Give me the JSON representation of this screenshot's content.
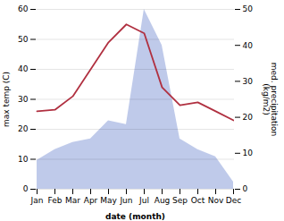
{
  "chart_data": {
    "type": "line",
    "categories": [
      "Jan",
      "Feb",
      "Mar",
      "Apr",
      "May",
      "Jun",
      "Jul",
      "Aug",
      "Sep",
      "Oct",
      "Nov",
      "Dec"
    ],
    "xlabel": "date (month)",
    "ylabel": "max temp (C)",
    "y2label": "med. precipitation\n(kg/m2)",
    "series": [
      {
        "type": "area",
        "axis": "y2",
        "color": "#b8c4e8",
        "values": [
          8,
          11,
          13,
          14,
          19,
          18,
          50,
          40,
          14,
          11,
          9,
          2
        ]
      },
      {
        "type": "line",
        "color": "#b03040",
        "values": [
          26,
          26.5,
          31,
          40,
          49,
          55,
          52,
          34,
          28,
          29,
          26,
          23
        ]
      }
    ],
    "ylim": [
      0,
      60
    ],
    "yticks": [
      0,
      10,
      20,
      30,
      40,
      50,
      60
    ],
    "y2lim": [
      0,
      50
    ],
    "y2ticks": [
      0,
      10,
      20,
      30,
      40,
      50
    ],
    "grid": true
  }
}
